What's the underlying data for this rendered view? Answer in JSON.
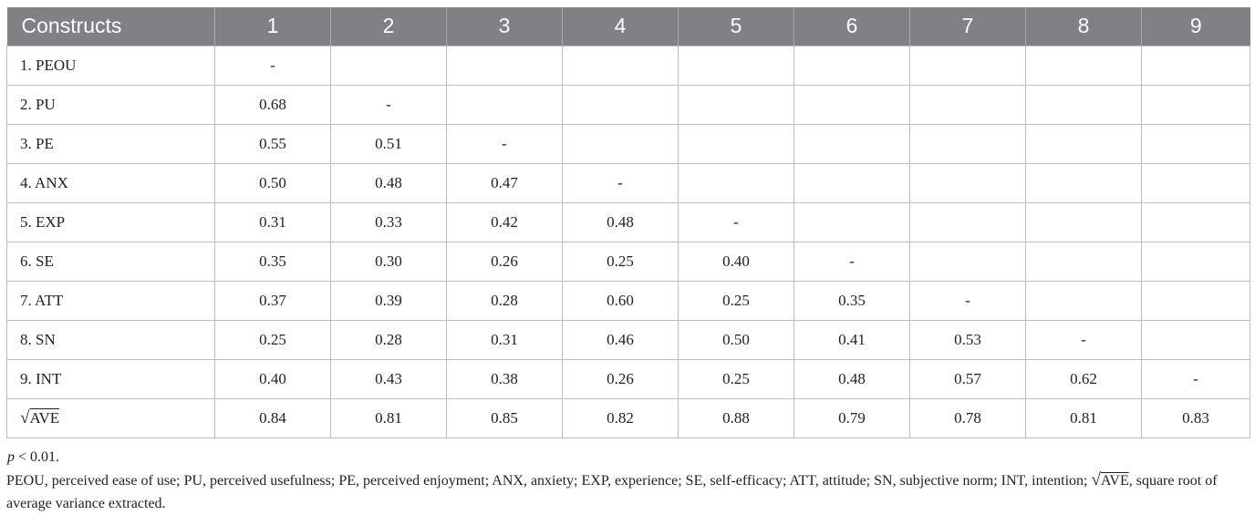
{
  "table": {
    "headers": [
      "Constructs",
      "1",
      "2",
      "3",
      "4",
      "5",
      "6",
      "7",
      "8",
      "9"
    ],
    "rows": [
      [
        "1. PEOU",
        "-",
        "",
        "",
        "",
        "",
        "",
        "",
        "",
        ""
      ],
      [
        "2. PU",
        "0.68",
        "-",
        "",
        "",
        "",
        "",
        "",
        "",
        ""
      ],
      [
        "3. PE",
        "0.55",
        "0.51",
        "-",
        "",
        "",
        "",
        "",
        "",
        ""
      ],
      [
        "4. ANX",
        "0.50",
        "0.48",
        "0.47",
        "-",
        "",
        "",
        "",
        "",
        ""
      ],
      [
        "5. EXP",
        "0.31",
        "0.33",
        "0.42",
        "0.48",
        "-",
        "",
        "",
        "",
        ""
      ],
      [
        "6. SE",
        "0.35",
        "0.30",
        "0.26",
        "0.25",
        "0.40",
        "-",
        "",
        "",
        ""
      ],
      [
        "7. ATT",
        "0.37",
        "0.39",
        "0.28",
        "0.60",
        "0.25",
        "0.35",
        "-",
        "",
        ""
      ],
      [
        "8. SN",
        "0.25",
        "0.28",
        "0.31",
        "0.46",
        "0.50",
        "0.41",
        "0.53",
        "-",
        ""
      ],
      [
        "9. INT",
        "0.40",
        "0.43",
        "0.38",
        "0.26",
        "0.25",
        "0.48",
        "0.57",
        "0.62",
        "-"
      ]
    ],
    "ave_row": {
      "label_symbol": "√",
      "label_text": "AVE",
      "values": [
        "0.84",
        "0.81",
        "0.85",
        "0.82",
        "0.88",
        "0.79",
        "0.78",
        "0.81",
        "0.83"
      ]
    }
  },
  "notes": {
    "p_var": "p",
    "p_rest": " < 0.01.",
    "abbrev_line1": "PEOU, perceived ease of use; PU, perceived usefulness; PE, perceived enjoyment; ANX, anxiety; EXP, experience; SE, self-efficacy; ATT, attitude; SN, subjective norm; INT, intention; ",
    "abbrev_symbol": "√",
    "abbrev_ave": "AVE",
    "abbrev_line2": ", square root of average variance extracted."
  }
}
